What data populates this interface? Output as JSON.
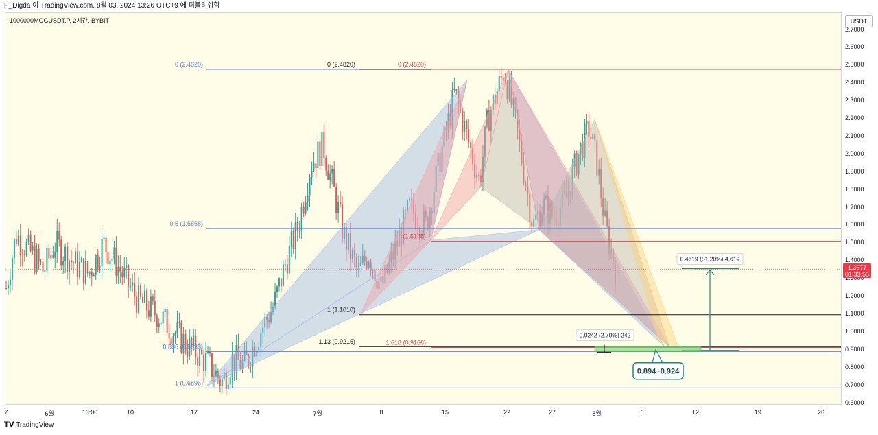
{
  "header": {
    "caption": "P_Digda 이 TradingView.com, 8월 03, 2024 13:26 UTC+9 에 퍼블리쉬함"
  },
  "chart": {
    "symbol_line": "1000000MOGUSDT.P, 2시간, BYBIT",
    "currency": "USDT",
    "last_price": "1.3577",
    "countdown": "01:33:55"
  },
  "footer": {
    "logo": "TradingView"
  },
  "colors": {
    "background": "#fffde7",
    "bull": "#26a69a",
    "bear": "#ef5350",
    "fib_blue": "#5b7fd6",
    "fib_red": "#e0454f",
    "pattern_blue": "#9fb8e6",
    "pattern_red": "#f0a0a4",
    "pattern_gray": "#bdb5b2",
    "pattern_orange": "#ffd27a",
    "target_green": "#7ed67e",
    "arrow_teal": "#1e8a7e"
  },
  "chart_data": {
    "type": "candlestick",
    "y_axis": {
      "ticks": [
        "0.6000",
        "0.7000",
        "0.8000",
        "0.9000",
        "1.0000",
        "1.1000",
        "1.2000",
        "1.3000",
        "1.4000",
        "1.5000",
        "1.6000",
        "1.7000",
        "1.8000",
        "1.9000",
        "2.0000",
        "2.1000",
        "2.2000",
        "2.3000",
        "2.4000",
        "2.5000",
        "2.6000",
        "2.7000"
      ],
      "range": [
        0.6,
        2.7
      ]
    },
    "x_axis": {
      "ticks": [
        "7",
        "6월",
        "13:00",
        "10",
        "17",
        "24",
        "7월",
        "8",
        "15",
        "22",
        "27",
        "8월",
        "6",
        "12",
        "19",
        "26"
      ]
    },
    "price_path": [
      {
        "t": 0.0,
        "p": 1.25
      },
      {
        "t": 0.012,
        "p": 1.55
      },
      {
        "t": 0.03,
        "p": 1.45
      },
      {
        "t": 0.045,
        "p": 1.35
      },
      {
        "t": 0.06,
        "p": 1.5
      },
      {
        "t": 0.08,
        "p": 1.4
      },
      {
        "t": 0.1,
        "p": 1.33
      },
      {
        "t": 0.118,
        "p": 1.5
      },
      {
        "t": 0.135,
        "p": 1.38
      },
      {
        "t": 0.16,
        "p": 1.18
      },
      {
        "t": 0.185,
        "p": 1.1
      },
      {
        "t": 0.205,
        "p": 1.0
      },
      {
        "t": 0.222,
        "p": 0.92
      },
      {
        "t": 0.245,
        "p": 0.83
      },
      {
        "t": 0.262,
        "p": 0.72
      },
      {
        "t": 0.275,
        "p": 0.85
      },
      {
        "t": 0.29,
        "p": 0.82
      },
      {
        "t": 0.31,
        "p": 1.02
      },
      {
        "t": 0.325,
        "p": 1.15
      },
      {
        "t": 0.34,
        "p": 1.4
      },
      {
        "t": 0.355,
        "p": 1.6
      },
      {
        "t": 0.37,
        "p": 1.95
      },
      {
        "t": 0.385,
        "p": 2.05
      },
      {
        "t": 0.398,
        "p": 1.8
      },
      {
        "t": 0.41,
        "p": 1.55
      },
      {
        "t": 0.428,
        "p": 1.33
      },
      {
        "t": 0.44,
        "p": 1.45
      },
      {
        "t": 0.456,
        "p": 1.25
      },
      {
        "t": 0.475,
        "p": 1.5
      },
      {
        "t": 0.49,
        "p": 1.7
      },
      {
        "t": 0.51,
        "p": 1.6
      },
      {
        "t": 0.528,
        "p": 2.0
      },
      {
        "t": 0.545,
        "p": 2.35
      },
      {
        "t": 0.56,
        "p": 2.1
      },
      {
        "t": 0.575,
        "p": 1.85
      },
      {
        "t": 0.585,
        "p": 2.2
      },
      {
        "t": 0.605,
        "p": 2.48
      },
      {
        "t": 0.62,
        "p": 2.15
      },
      {
        "t": 0.64,
        "p": 1.6
      },
      {
        "t": 0.652,
        "p": 1.72
      },
      {
        "t": 0.665,
        "p": 1.65
      },
      {
        "t": 0.68,
        "p": 1.75
      },
      {
        "t": 0.695,
        "p": 2.0
      },
      {
        "t": 0.708,
        "p": 2.15
      },
      {
        "t": 0.718,
        "p": 1.95
      },
      {
        "t": 0.728,
        "p": 1.6
      },
      {
        "t": 0.74,
        "p": 1.36
      }
    ],
    "fib_left": {
      "color": "blue",
      "levels": [
        {
          "label": "0 (2.4820)",
          "value": 2.482
        },
        {
          "label": "0.5 (1.5858)",
          "value": 1.5858
        },
        {
          "label": "0.886 (0.8938)",
          "value": 0.8938
        },
        {
          "label": "1 (0.6895)",
          "value": 0.6895
        }
      ]
    },
    "fib_mid": {
      "color": "black",
      "levels": [
        {
          "label": "0 (2.4820)",
          "value": 2.482
        },
        {
          "label": "1 (1.1010)",
          "value": 1.101
        },
        {
          "label": "1.13 (0.9215)",
          "value": 0.9215
        }
      ]
    },
    "fib_right": {
      "color": "red",
      "levels": [
        {
          "label": "0 (2.4820)",
          "value": 2.482
        },
        {
          "label": "(1.5145)",
          "value": 1.5145
        },
        {
          "label": "1.618 (0.9166)",
          "value": 0.9166
        }
      ]
    },
    "measure_up": {
      "label": "0.4619 (51.20%) 4,619",
      "from": 0.9,
      "to": 1.36
    },
    "measure_zone": {
      "label": "0.0242 (2.70%) 242",
      "from": 0.894,
      "to": 0.924
    },
    "target_callout": "0.894~0.924"
  }
}
